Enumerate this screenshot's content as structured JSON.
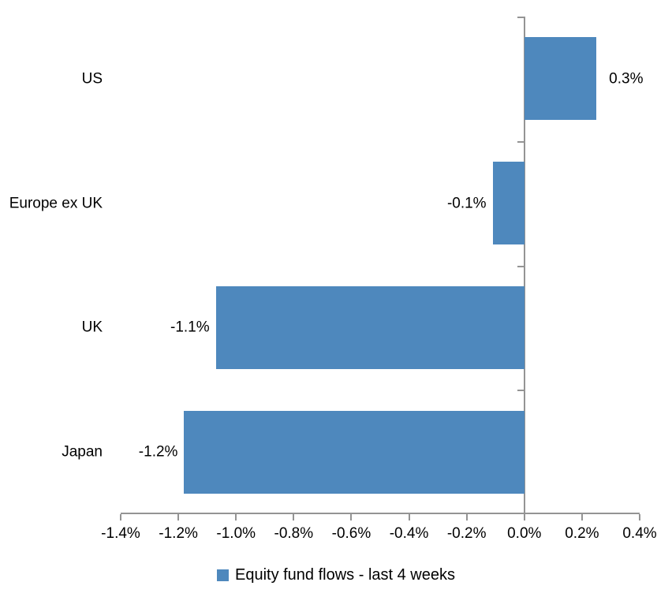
{
  "chart_data": {
    "type": "bar",
    "orientation": "horizontal",
    "categories": [
      "US",
      "Europe ex UK",
      "UK",
      "Japan"
    ],
    "values": [
      0.3,
      -0.1,
      -1.1,
      -1.2
    ],
    "values_precise": [
      0.25,
      -0.11,
      -1.07,
      -1.18
    ],
    "data_labels": [
      "0.3%",
      "-0.1%",
      "-1.1%",
      "-1.2%"
    ],
    "xlim": [
      -1.4,
      0.4
    ],
    "x_tick_step": 0.2,
    "x_tick_labels": [
      "-1.4%",
      "-1.2%",
      "-1.0%",
      "-0.8%",
      "-0.6%",
      "-0.4%",
      "-0.2%",
      "0.0%",
      "0.2%",
      "0.4%"
    ],
    "grid": false,
    "legend_position": "bottom",
    "legend": [
      {
        "label": "Equity fund flows - last 4 weeks",
        "color": "#4E88BD"
      }
    ]
  },
  "colors": {
    "bar": "#4E88BD",
    "axis": "#949494",
    "text": "#000000",
    "background": "#FFFFFF"
  }
}
